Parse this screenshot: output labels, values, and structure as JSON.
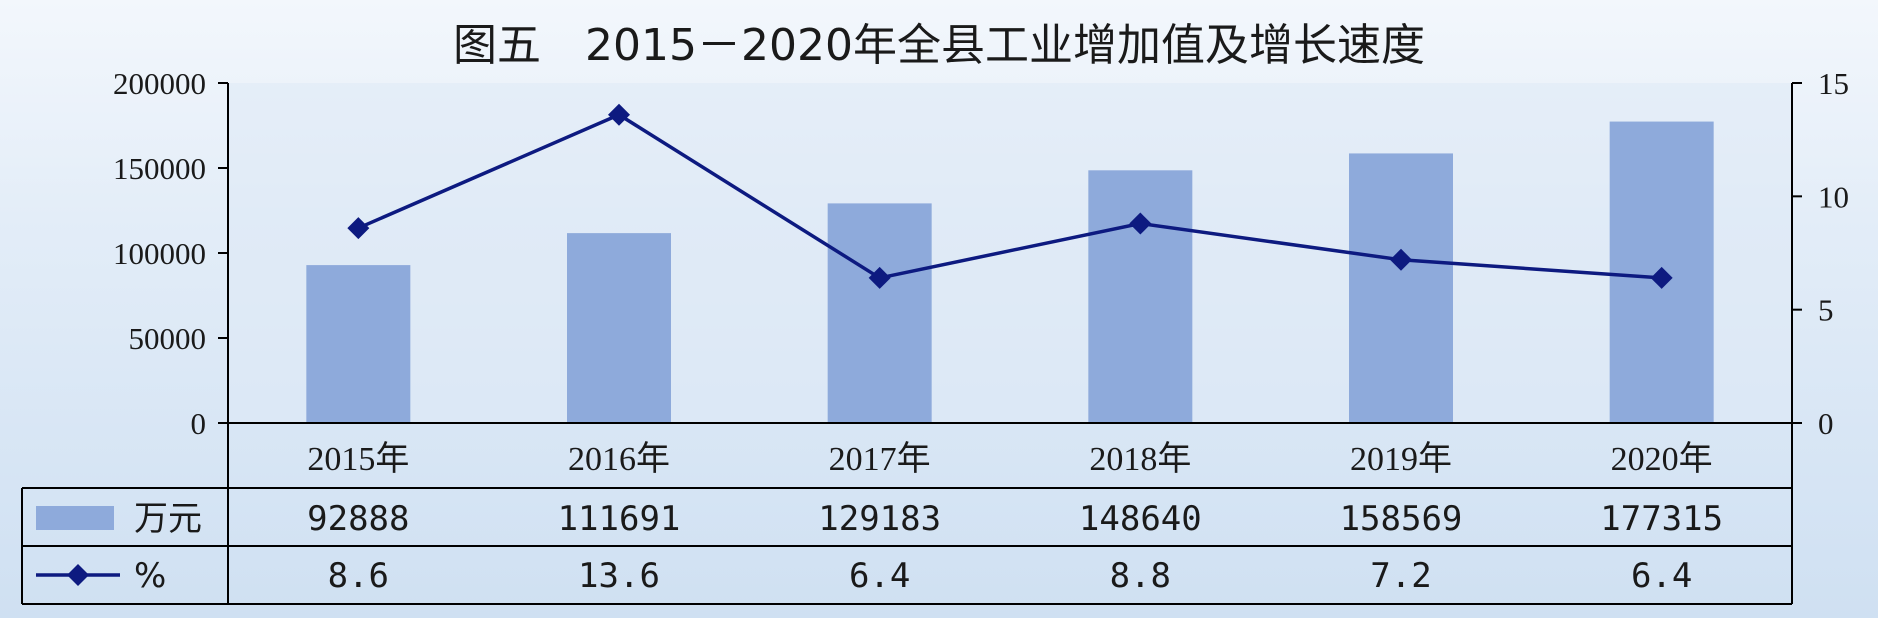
{
  "colors": {
    "bar": "#8eaadb",
    "line": "#0d1a80",
    "axis": "#000000"
  },
  "chart_data": {
    "type": "bar",
    "title": "图五　2015－2020年全县工业增加值及增长速度",
    "categories": [
      "2015年",
      "2016年",
      "2017年",
      "2018年",
      "2019年",
      "2020年"
    ],
    "series": [
      {
        "name": "万元",
        "type": "bar",
        "axis": "left",
        "values": [
          92888,
          111691,
          129183,
          148640,
          158569,
          177315
        ]
      },
      {
        "name": "%",
        "type": "line",
        "axis": "right",
        "values": [
          8.6,
          13.6,
          6.4,
          8.8,
          7.2,
          6.4
        ]
      }
    ],
    "y_left": {
      "range": [
        0,
        200000
      ],
      "ticks": [
        0,
        50000,
        100000,
        150000,
        200000
      ]
    },
    "y_right": {
      "range": [
        0,
        15
      ],
      "ticks": [
        0,
        5,
        10,
        15
      ]
    },
    "table": {
      "rows": [
        {
          "label": "万元",
          "values": [
            "92888",
            "111691",
            "129183",
            "148640",
            "158569",
            "177315"
          ]
        },
        {
          "label": "%",
          "values": [
            "8.6",
            "13.6",
            "6.4",
            "8.8",
            "7.2",
            "6.4"
          ]
        }
      ]
    },
    "grid": false,
    "legend": "data-table"
  }
}
